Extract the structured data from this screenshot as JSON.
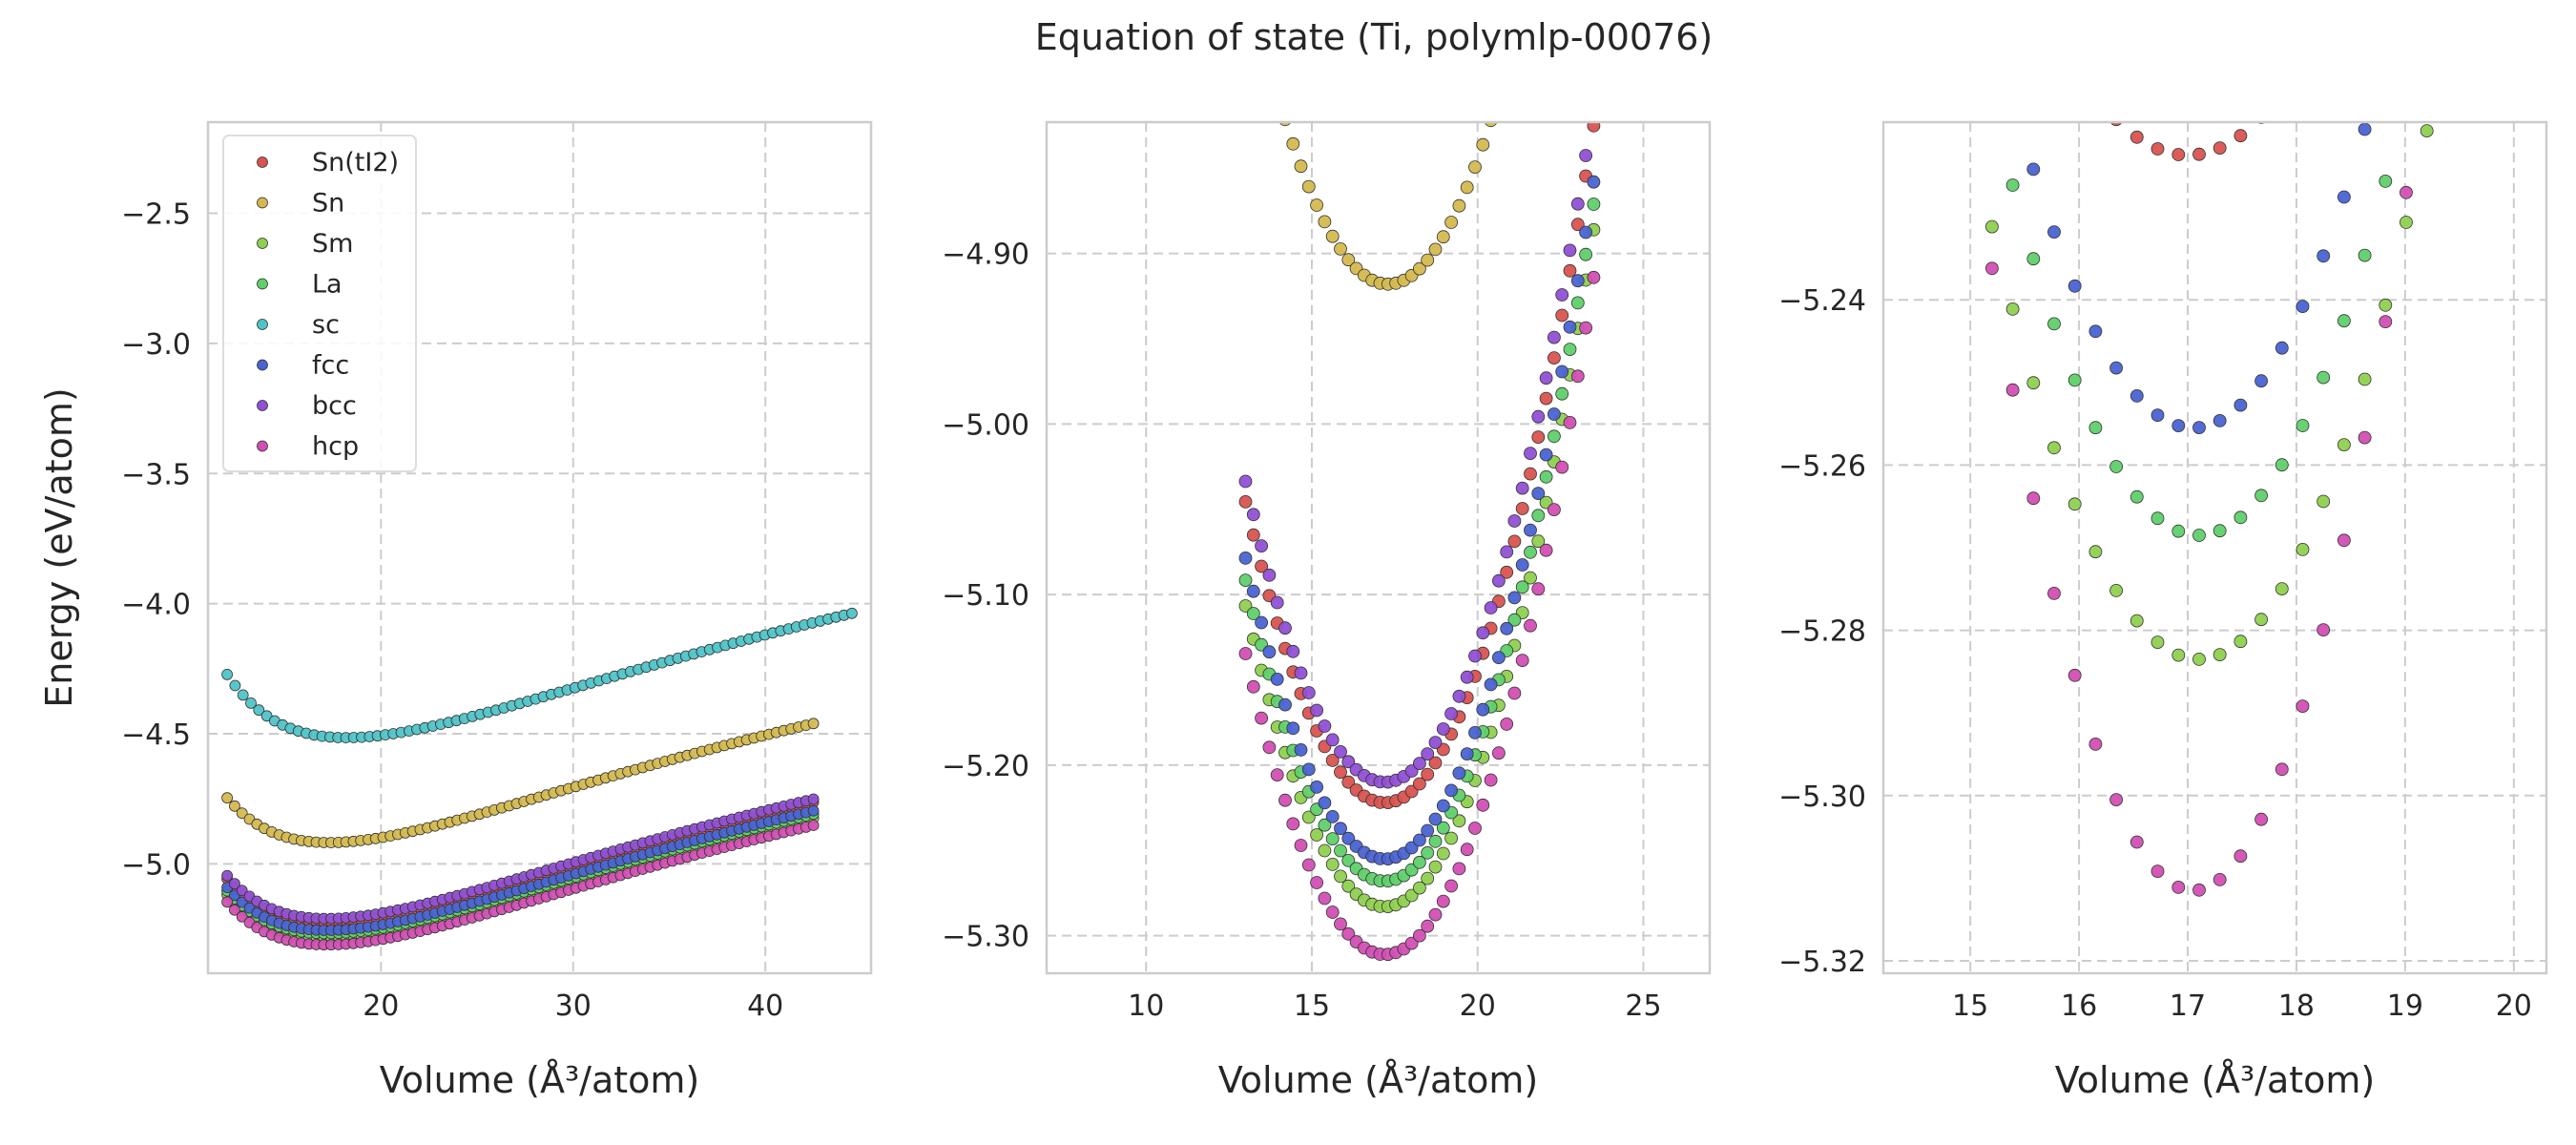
{
  "figure_title": "Equation of state (Ti, polymlp-00076)",
  "colors": {
    "Sn(tI2)": "#d9534f",
    "Sn": "#d4b94e",
    "Sm": "#8fd14f",
    "La": "#5fd06a",
    "sc": "#4fc4c8",
    "fcc": "#4a63d3",
    "bcc": "#9150d6",
    "hcp": "#d34fb4"
  },
  "legend": [
    "Sn(tI2)",
    "Sn",
    "Sm",
    "La",
    "sc",
    "fcc",
    "bcc",
    "hcp"
  ],
  "chart_data": [
    {
      "type": "scatter",
      "xlabel": "Volume (Å³/atom)",
      "ylabel": "Energy (eV/atom)",
      "xlim": [
        11,
        45.5
      ],
      "ylim": [
        -5.42,
        -2.15
      ],
      "xticks": [
        20,
        30,
        40
      ],
      "yticks": [
        -5.0,
        -4.5,
        -4.0,
        -3.5,
        -3.0,
        -2.5
      ],
      "grid": true,
      "legend_position": "top-left",
      "series": [
        {
          "name": "Sn(tI2)",
          "v0": 17.2,
          "e0": -5.222,
          "b": 0.1157,
          "bp": 4.0,
          "range": [
            12.0,
            42.5
          ],
          "n": 80
        },
        {
          "name": "Sn",
          "v0": 17.3,
          "e0": -4.918,
          "b": 0.1157,
          "bp": 4.0,
          "range": [
            12.0,
            42.5
          ],
          "n": 80
        },
        {
          "name": "Sm",
          "v0": 17.2,
          "e0": -5.283,
          "b": 0.1157,
          "bp": 4.0,
          "range": [
            12.0,
            42.5
          ],
          "n": 80
        },
        {
          "name": "La",
          "v0": 17.2,
          "e0": -5.268,
          "b": 0.1157,
          "bp": 4.0,
          "range": [
            12.0,
            42.5
          ],
          "n": 80
        },
        {
          "name": "sc",
          "v0": 18.2,
          "e0": -4.515,
          "b": 0.1157,
          "bp": 4.0,
          "range": [
            12.0,
            44.5
          ],
          "n": 80
        },
        {
          "name": "fcc",
          "v0": 17.2,
          "e0": -5.255,
          "b": 0.1157,
          "bp": 4.0,
          "range": [
            12.0,
            42.5
          ],
          "n": 80
        },
        {
          "name": "bcc",
          "v0": 17.2,
          "e0": -5.21,
          "b": 0.1157,
          "bp": 4.0,
          "range": [
            12.0,
            42.5
          ],
          "n": 80
        },
        {
          "name": "hcp",
          "v0": 17.2,
          "e0": -5.311,
          "b": 0.1157,
          "bp": 4.0,
          "range": [
            12.0,
            42.5
          ],
          "n": 80
        }
      ]
    },
    {
      "type": "scatter",
      "xlabel": "Volume (Å³/atom)",
      "ylabel": "",
      "xlim": [
        7.0,
        27.0
      ],
      "ylim": [
        -5.322,
        -4.823
      ],
      "xticks": [
        10,
        15,
        20,
        25
      ],
      "yticks": [
        -5.3,
        -5.2,
        -5.1,
        -5.0,
        -4.9
      ],
      "grid": true,
      "series": [
        {
          "name": "Sn(tI2)",
          "v0": 17.2,
          "e0": -5.222,
          "c": 0.01,
          "range": [
            13.0,
            23.5
          ],
          "n": 45
        },
        {
          "name": "Sn",
          "v0": 17.3,
          "e0": -4.918,
          "c": 0.01,
          "range": [
            13.0,
            23.5
          ],
          "n": 45
        },
        {
          "name": "Sm",
          "v0": 17.2,
          "e0": -5.283,
          "c": 0.01,
          "range": [
            13.0,
            23.5
          ],
          "n": 45
        },
        {
          "name": "La",
          "v0": 17.2,
          "e0": -5.268,
          "c": 0.01,
          "range": [
            13.0,
            23.5
          ],
          "n": 45
        },
        {
          "name": "fcc",
          "v0": 17.2,
          "e0": -5.255,
          "c": 0.01,
          "range": [
            13.0,
            23.5
          ],
          "n": 45
        },
        {
          "name": "bcc",
          "v0": 17.2,
          "e0": -5.21,
          "c": 0.01,
          "range": [
            13.0,
            23.5
          ],
          "n": 45
        },
        {
          "name": "hcp",
          "v0": 17.2,
          "e0": -5.311,
          "c": 0.01,
          "range": [
            13.0,
            23.5
          ],
          "n": 45
        }
      ]
    },
    {
      "type": "scatter",
      "xlabel": "Volume (Å³/atom)",
      "ylabel": "",
      "xlim": [
        14.2,
        20.3
      ],
      "ylim": [
        -5.3215,
        -5.2185
      ],
      "xticks": [
        15,
        16,
        17,
        18,
        19,
        20
      ],
      "yticks": [
        -5.32,
        -5.3,
        -5.28,
        -5.26,
        -5.24
      ],
      "grid": true,
      "series": [
        {
          "name": "Sn(tI2)",
          "v0": 17.0,
          "e0": -5.2225,
          "c": 0.01,
          "range": [
            15.2,
            19.2
          ],
          "n": 22
        },
        {
          "name": "Sm",
          "v0": 17.1,
          "e0": -5.2835,
          "c": 0.0145,
          "range": [
            15.2,
            19.2
          ],
          "n": 22
        },
        {
          "name": "La",
          "v0": 17.1,
          "e0": -5.2685,
          "c": 0.0145,
          "range": [
            15.2,
            19.2
          ],
          "n": 22
        },
        {
          "name": "fcc",
          "v0": 17.05,
          "e0": -5.2555,
          "c": 0.0145,
          "range": [
            15.2,
            19.2
          ],
          "n": 22
        },
        {
          "name": "hcp",
          "v0": 17.05,
          "e0": -5.3115,
          "c": 0.022,
          "range": [
            15.2,
            19.2
          ],
          "n": 22
        }
      ]
    }
  ]
}
